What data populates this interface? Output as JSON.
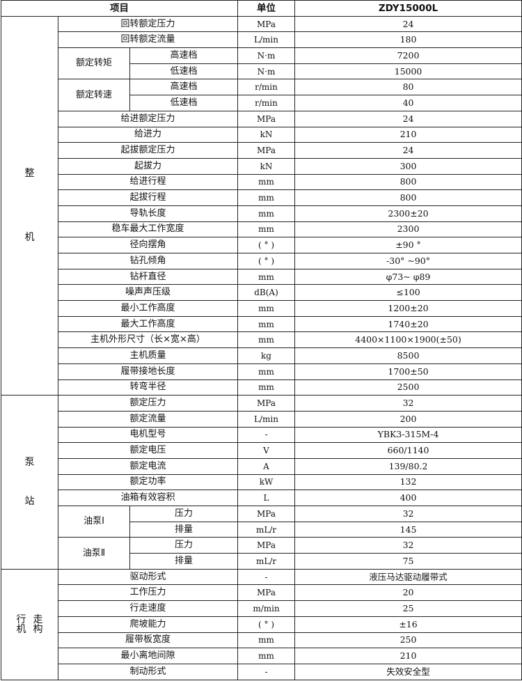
{
  "header": {
    "item": "项目",
    "unit": "单位",
    "model": "ZDY15000L"
  },
  "sections": [
    {
      "lines": [
        "整",
        "机"
      ],
      "rows": [
        {
          "item": "回转额定压力",
          "unit": "MPa",
          "value": "24"
        },
        {
          "item": "回转额定流量",
          "unit": "L/min",
          "value": "180"
        },
        {
          "label": "额定转矩",
          "rows": [
            {
              "item": "高速档",
              "unit": "N·m",
              "value": "7200"
            },
            {
              "item": "低速档",
              "unit": "N·m",
              "value": "15000"
            }
          ]
        },
        {
          "label": "额定转速",
          "rows": [
            {
              "item": "高速档",
              "unit": "r/min",
              "value": "80"
            },
            {
              "item": "低速档",
              "unit": "r/min",
              "value": "40"
            }
          ]
        },
        {
          "item": "给进额定压力",
          "unit": "MPa",
          "value": "24"
        },
        {
          "item": "给进力",
          "unit": "kN",
          "value": "210"
        },
        {
          "item": "起拔额定压力",
          "unit": "MPa",
          "value": "24"
        },
        {
          "item": "起拔力",
          "unit": "kN",
          "value": "300"
        },
        {
          "item": "给进行程",
          "unit": "mm",
          "value": "800"
        },
        {
          "item": "起拔行程",
          "unit": "mm",
          "value": "800"
        },
        {
          "item": "导轨长度",
          "unit": "mm",
          "value": "2300±20"
        },
        {
          "item": "稳车最大工作宽度",
          "unit": "mm",
          "value": "2300"
        },
        {
          "item": "径向摆角",
          "unit": "( ° )",
          "value": "±90 °"
        },
        {
          "item": "钻孔倾角",
          "unit": "( ° )",
          "value": "-30° ~90°"
        },
        {
          "item": "钻杆直径",
          "unit": "mm",
          "value": "φ73~ φ89"
        },
        {
          "item": "噪声声压级",
          "unit": "dB(A)",
          "value": "≤100"
        },
        {
          "item": "最小工作高度",
          "unit": "mm",
          "value": "1200±20"
        },
        {
          "item": "最大工作高度",
          "unit": "mm",
          "value": "1740±20"
        },
        {
          "item": "主机外形尺寸（长×宽×高）",
          "unit": "mm",
          "value": "4400×1100×1900(±50)"
        },
        {
          "item": "主机质量",
          "unit": "kg",
          "value": "8500"
        },
        {
          "item": "履带接地长度",
          "unit": "mm",
          "value": "1700±50"
        },
        {
          "item": "转弯半径",
          "unit": "mm",
          "value": "2500"
        }
      ]
    },
    {
      "lines": [
        "泵",
        "站"
      ],
      "rows": [
        {
          "item": "额定压力",
          "unit": "MPa",
          "value": "32"
        },
        {
          "item": "额定流量",
          "unit": "L/min",
          "value": "200"
        },
        {
          "item": "电机型号",
          "unit": "-",
          "value": "YBK3-315M-4"
        },
        {
          "item": "额定电压",
          "unit": "V",
          "value": "660/1140"
        },
        {
          "item": "额定电流",
          "unit": "A",
          "value": "139/80.2"
        },
        {
          "item": "额定功率",
          "unit": "kW",
          "value": "132"
        },
        {
          "item": "油箱有效容积",
          "unit": "L",
          "value": "400"
        },
        {
          "label": "油泵Ⅰ",
          "rows": [
            {
              "item": "压力",
              "unit": "MPa",
              "value": "32"
            },
            {
              "item": "排量",
              "unit": "mL/r",
              "value": "145"
            }
          ]
        },
        {
          "label": "油泵Ⅱ",
          "rows": [
            {
              "item": "压力",
              "unit": "MPa",
              "value": "32"
            },
            {
              "item": "排量",
              "unit": "mL/r",
              "value": "75"
            }
          ]
        }
      ]
    },
    {
      "lines": [
        "行走",
        "机构"
      ],
      "rows": [
        {
          "item": "驱动形式",
          "unit": "-",
          "value": "液压马达驱动履带式"
        },
        {
          "item": "工作压力",
          "unit": "MPa",
          "value": "20"
        },
        {
          "item": "行走速度",
          "unit": "m/min",
          "value": "25"
        },
        {
          "item": "爬坡能力",
          "unit": "( ° )",
          "value": "±16"
        },
        {
          "item": "履带板宽度",
          "unit": "mm",
          "value": "250"
        },
        {
          "item": "最小离地间隙",
          "unit": "mm",
          "value": "210"
        },
        {
          "item": "制动形式",
          "unit": "-",
          "value": "失效安全型"
        }
      ]
    }
  ]
}
